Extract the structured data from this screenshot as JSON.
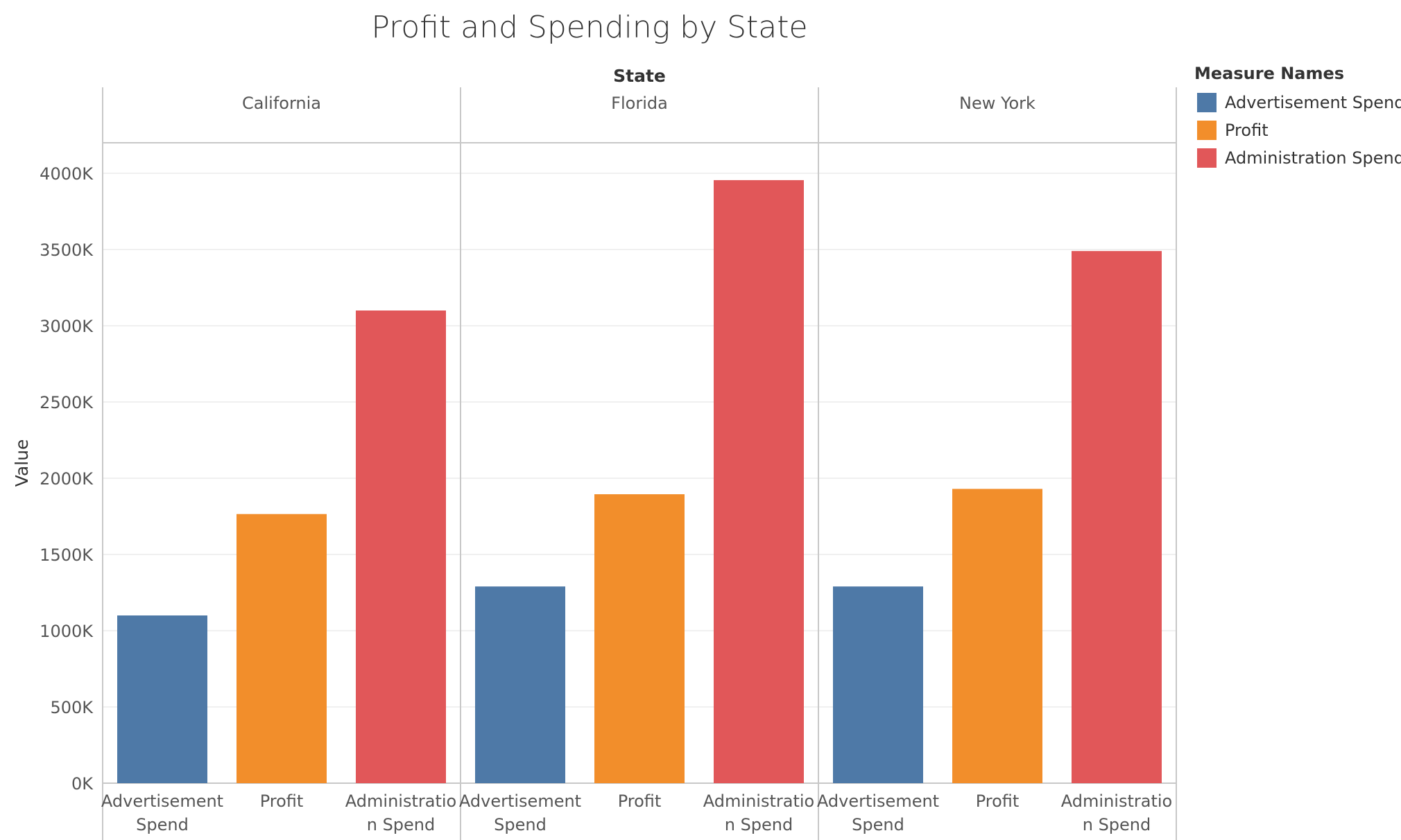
{
  "chart_data": {
    "type": "bar",
    "title": "Profit and Spending by State",
    "column_header": "State",
    "ylabel": "Value",
    "ylim": [
      0,
      4200000
    ],
    "yticks": [
      0,
      500000,
      1000000,
      1500000,
      2000000,
      2500000,
      3000000,
      3500000,
      4000000
    ],
    "ytick_labels": [
      "0K",
      "500K",
      "1000K",
      "1500K",
      "2000K",
      "2500K",
      "3000K",
      "3500K",
      "4000K"
    ],
    "grid": true,
    "legend_position": "right",
    "states": [
      "California",
      "Florida",
      "New York"
    ],
    "measures": [
      "Advertisement Spend",
      "Profit",
      "Administration Spend"
    ],
    "x_labels": [
      [
        "Advertisement",
        "Spend"
      ],
      [
        "Profit"
      ],
      [
        "Administratio",
        "n Spend"
      ]
    ],
    "series": [
      {
        "name": "Advertisement Spend",
        "color": "#4e79a7",
        "values": [
          1100000,
          1290000,
          1290000
        ]
      },
      {
        "name": "Profit",
        "color": "#f28e2b",
        "values": [
          1765000,
          1895000,
          1930000
        ]
      },
      {
        "name": "Administration Spend",
        "color": "#e15759",
        "values": [
          3100000,
          3955000,
          3490000
        ]
      }
    ]
  },
  "legend": {
    "title": "Measure Names",
    "items": [
      {
        "label": "Advertisement Spend",
        "color": "#4e79a7"
      },
      {
        "label": "Profit",
        "color": "#f28e2b"
      },
      {
        "label": "Administration Spend",
        "color": "#e15759"
      }
    ]
  }
}
